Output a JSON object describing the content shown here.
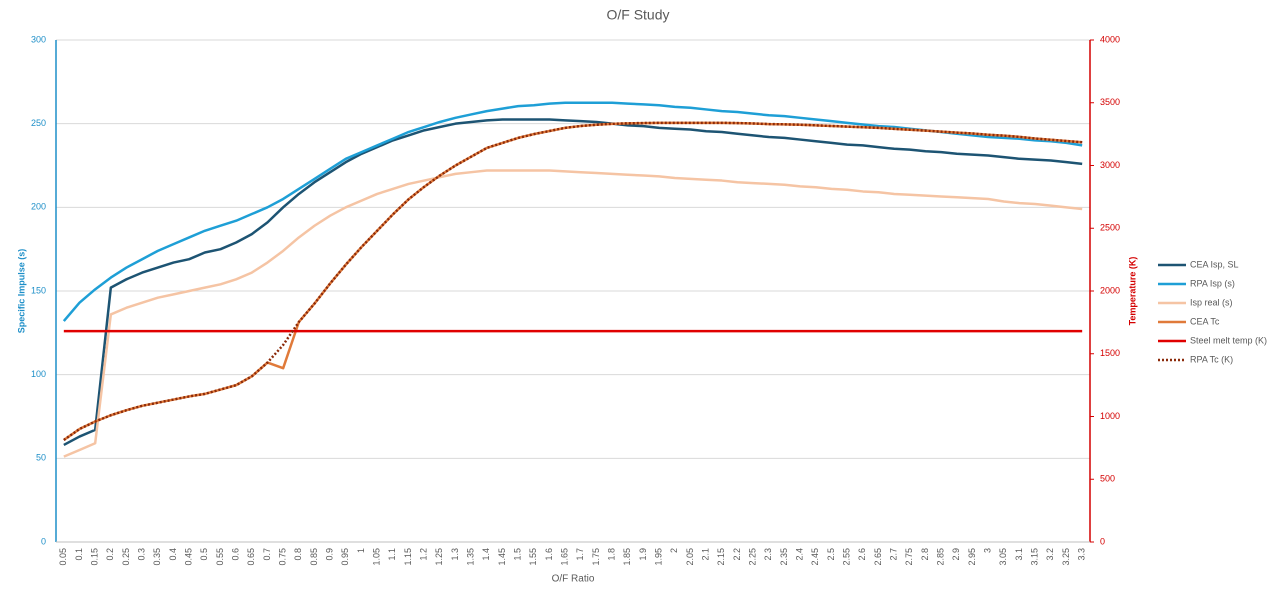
{
  "chart_data": {
    "type": "line",
    "title": "O/F Study",
    "x_label": "O/F Ratio",
    "y_label": "Specific Impulse (s)",
    "y2_label": "Temperature (K)",
    "categories": [
      "0.05",
      "0.1",
      "0.15",
      "0.2",
      "0.25",
      "0.3",
      "0.35",
      "0.4",
      "0.45",
      "0.5",
      "0.55",
      "0.6",
      "0.65",
      "0.7",
      "0.75",
      "0.8",
      "0.85",
      "0.9",
      "0.95",
      "1",
      "1.05",
      "1.1",
      "1.15",
      "1.2",
      "1.25",
      "1.3",
      "1.35",
      "1.4",
      "1.45",
      "1.5",
      "1.55",
      "1.6",
      "1.65",
      "1.7",
      "1.75",
      "1.8",
      "1.85",
      "1.9",
      "1.95",
      "2",
      "2.05",
      "2.1",
      "2.15",
      "2.2",
      "2.25",
      "2.3",
      "2.35",
      "2.4",
      "2.45",
      "2.5",
      "2.55",
      "2.6",
      "2.65",
      "2.7",
      "2.75",
      "2.8",
      "2.85",
      "2.9",
      "2.95",
      "3",
      "3.05",
      "3.1",
      "3.15",
      "3.2",
      "3.25",
      "3.3"
    ],
    "ylim": [
      0,
      300
    ],
    "yticks": [
      0,
      50,
      100,
      150,
      200,
      250,
      300
    ],
    "y2lim": [
      0,
      4000
    ],
    "y2ticks": [
      0,
      500,
      1000,
      1500,
      2000,
      2500,
      3000,
      3500,
      4000
    ],
    "grid": true,
    "legend": "right",
    "series": [
      {
        "name": "CEA Isp, SL",
        "color": "#1d5473",
        "axis": "y",
        "values": [
          58,
          63,
          67,
          152,
          157,
          161,
          164,
          167,
          169,
          173,
          175,
          179,
          184,
          191,
          200,
          208,
          215,
          221,
          227,
          232,
          236,
          240,
          243,
          246,
          248,
          250,
          251,
          252,
          252.5,
          252.5,
          252.5,
          252.5,
          252,
          251.5,
          251,
          250,
          249,
          248.5,
          247.5,
          247,
          246.5,
          245.5,
          245,
          244,
          243,
          242,
          241.5,
          240.5,
          239.5,
          238.5,
          237.5,
          237,
          236,
          235,
          234.5,
          233.5,
          233,
          232,
          231.5,
          231,
          230,
          229,
          228.5,
          228,
          227,
          226
        ]
      },
      {
        "name": "RPA Isp (s)",
        "color": "#1e9fd6",
        "axis": "y",
        "values": [
          132,
          143,
          151,
          158,
          164,
          169,
          174,
          178,
          182,
          186,
          189,
          192,
          196,
          200,
          205,
          211,
          217,
          223,
          229,
          233,
          237,
          241,
          245,
          248,
          251,
          253.5,
          255.5,
          257.5,
          259,
          260.5,
          261,
          262,
          262.5,
          262.5,
          262.5,
          262.5,
          262,
          261.5,
          261,
          260,
          259.5,
          258.5,
          257.5,
          257,
          256,
          255,
          254.5,
          253.5,
          252.5,
          251.5,
          250.5,
          249.5,
          248.5,
          248,
          247,
          246,
          245,
          244,
          243,
          242,
          241.5,
          241,
          240,
          239.5,
          238.5,
          237
        ]
      },
      {
        "name": "Isp real (s)",
        "color": "#f5c4a4",
        "axis": "y",
        "values": [
          51,
          55,
          59,
          136,
          140,
          143,
          146,
          148,
          150,
          152,
          154,
          157,
          161,
          167,
          174,
          182,
          189,
          195,
          200,
          204,
          208,
          211,
          214,
          216,
          218,
          220,
          221,
          222,
          222,
          222,
          222,
          222,
          221.5,
          221,
          220.5,
          220,
          219.5,
          219,
          218.5,
          217.5,
          217,
          216.5,
          216,
          215,
          214.5,
          214,
          213.5,
          212.5,
          212,
          211,
          210.5,
          209.5,
          209,
          208,
          207.5,
          207,
          206.5,
          206,
          205.5,
          205,
          203.5,
          202.5,
          202,
          201,
          200,
          199
        ]
      },
      {
        "name": "CEA Tc",
        "color": "#e07a3a",
        "axis": "y2",
        "values": [
          813,
          900,
          960,
          1010,
          1050,
          1085,
          1110,
          1135,
          1160,
          1180,
          1215,
          1250,
          1320,
          1430,
          1385,
          1753,
          1900,
          2060,
          2210,
          2350,
          2480,
          2610,
          2730,
          2830,
          2920,
          3000,
          3070,
          3140,
          3180,
          3220,
          3250,
          3275,
          3300,
          3315,
          3325,
          3332,
          3336,
          3338,
          3340,
          3340,
          3340,
          3340,
          3340,
          3338,
          3335,
          3330,
          3328,
          3325,
          3320,
          3315,
          3310,
          3305,
          3300,
          3292,
          3285,
          3278,
          3270,
          3262,
          3255,
          3245,
          3238,
          3228,
          3215,
          3205,
          3195,
          3185
        ]
      },
      {
        "name": "Steel melt temp (K)",
        "color": "#e00000",
        "axis": "y2",
        "values": [
          1680,
          1680,
          1680,
          1680,
          1680,
          1680,
          1680,
          1680,
          1680,
          1680,
          1680,
          1680,
          1680,
          1680,
          1680,
          1680,
          1680,
          1680,
          1680,
          1680,
          1680,
          1680,
          1680,
          1680,
          1680,
          1680,
          1680,
          1680,
          1680,
          1680,
          1680,
          1680,
          1680,
          1680,
          1680,
          1680,
          1680,
          1680,
          1680,
          1680,
          1680,
          1680,
          1680,
          1680,
          1680,
          1680,
          1680,
          1680,
          1680,
          1680,
          1680,
          1680,
          1680,
          1680,
          1680,
          1680,
          1680,
          1680,
          1680,
          1680,
          1680,
          1680,
          1680,
          1680,
          1680,
          1680
        ]
      },
      {
        "name": "RPA Tc (K)",
        "color": "#8b2a0a",
        "axis": "y2",
        "line_style": "dotted",
        "values": [
          813,
          900,
          960,
          1010,
          1050,
          1085,
          1110,
          1135,
          1160,
          1180,
          1215,
          1250,
          1320,
          1430,
          1570,
          1753,
          1900,
          2060,
          2210,
          2350,
          2480,
          2610,
          2730,
          2830,
          2920,
          3000,
          3070,
          3140,
          3180,
          3220,
          3250,
          3275,
          3300,
          3315,
          3325,
          3332,
          3336,
          3338,
          3340,
          3340,
          3340,
          3340,
          3340,
          3338,
          3335,
          3330,
          3328,
          3325,
          3320,
          3315,
          3310,
          3305,
          3300,
          3292,
          3285,
          3278,
          3270,
          3262,
          3255,
          3245,
          3238,
          3228,
          3215,
          3205,
          3195,
          3185
        ]
      }
    ]
  }
}
